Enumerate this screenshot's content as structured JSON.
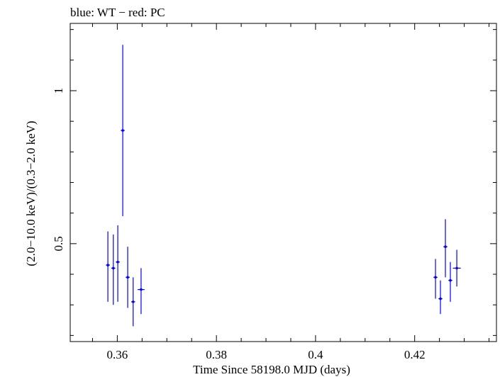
{
  "chart_data": {
    "type": "scatter",
    "title": "blue: WT − red: PC",
    "xlabel": "Time Since 58198.0 MJD (days)",
    "ylabel": "(2.0−10.0 keV)/(0.3−2.0 keV)",
    "xlim": [
      0.3505,
      0.4365
    ],
    "ylim": [
      0.18,
      1.22
    ],
    "log_y": false,
    "grid": false,
    "x_ticks": [
      {
        "value": 0.36,
        "label": "0.36"
      },
      {
        "value": 0.38,
        "label": "0.38"
      },
      {
        "value": 0.4,
        "label": "0.4"
      },
      {
        "value": 0.42,
        "label": "0.42"
      }
    ],
    "y_ticks": [
      {
        "value": 0.5,
        "label": "0.5"
      },
      {
        "value": 1.0,
        "label": "1"
      }
    ],
    "series": [
      {
        "name": "WT",
        "color": "#0000ff",
        "points": [
          {
            "x": 0.3581,
            "y": 0.43,
            "xerr": 0.0004,
            "ylo": 0.31,
            "yhi": 0.54
          },
          {
            "x": 0.3592,
            "y": 0.42,
            "xerr": 0.0004,
            "ylo": 0.3,
            "yhi": 0.53
          },
          {
            "x": 0.3601,
            "y": 0.44,
            "xerr": 0.0004,
            "ylo": 0.31,
            "yhi": 0.56
          },
          {
            "x": 0.3611,
            "y": 0.87,
            "xerr": 0.0004,
            "ylo": 0.59,
            "yhi": 1.15
          },
          {
            "x": 0.3621,
            "y": 0.39,
            "xerr": 0.0004,
            "ylo": 0.29,
            "yhi": 0.49
          },
          {
            "x": 0.3632,
            "y": 0.31,
            "xerr": 0.0004,
            "ylo": 0.23,
            "yhi": 0.39
          },
          {
            "x": 0.3648,
            "y": 0.35,
            "xerr": 0.0007,
            "ylo": 0.27,
            "yhi": 0.42
          },
          {
            "x": 0.4242,
            "y": 0.39,
            "xerr": 0.0004,
            "ylo": 0.32,
            "yhi": 0.45
          },
          {
            "x": 0.4252,
            "y": 0.32,
            "xerr": 0.0004,
            "ylo": 0.27,
            "yhi": 0.38
          },
          {
            "x": 0.4262,
            "y": 0.49,
            "xerr": 0.0004,
            "ylo": 0.39,
            "yhi": 0.58
          },
          {
            "x": 0.4272,
            "y": 0.38,
            "xerr": 0.0004,
            "ylo": 0.31,
            "yhi": 0.44
          },
          {
            "x": 0.4285,
            "y": 0.42,
            "xerr": 0.0008,
            "ylo": 0.36,
            "yhi": 0.48
          }
        ]
      }
    ]
  }
}
